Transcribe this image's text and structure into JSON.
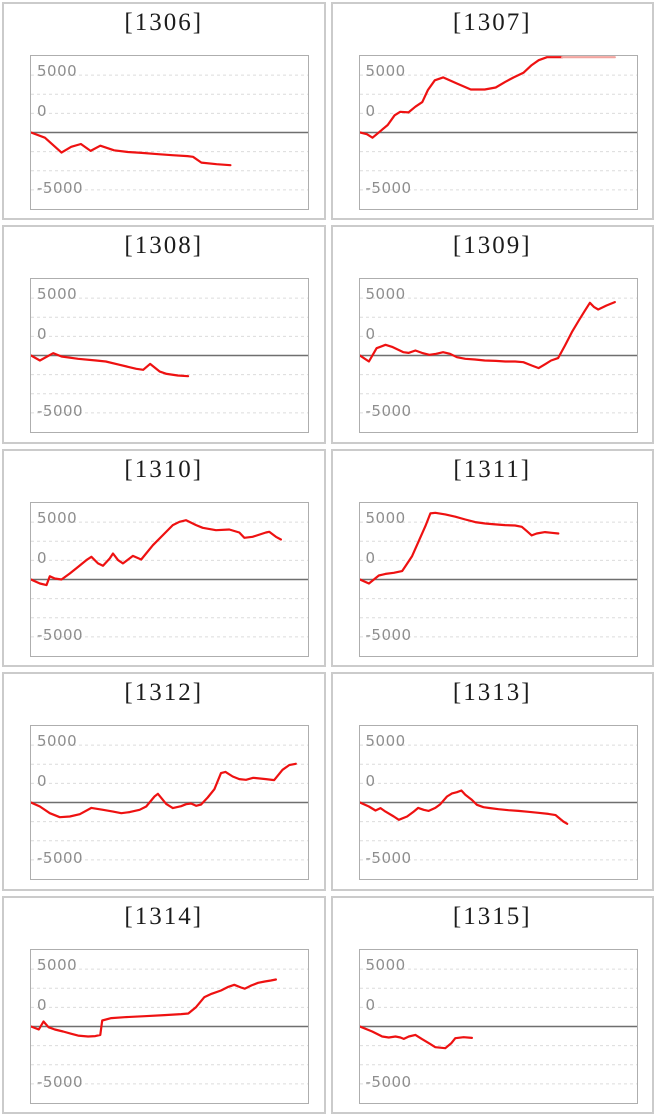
{
  "axis": {
    "y_tick_labels": [
      "5000",
      "0",
      "-5000"
    ],
    "y_max": 6667,
    "y_min": -6667,
    "gridline_divisions": 8,
    "gridline_step_value": 1667,
    "zero_line": "solid",
    "other_gridlines": "dashed"
  },
  "colors": {
    "line": "#ee1111",
    "line_clipped": "#f2a49f",
    "gridline": "#dcdcdc",
    "zero_line": "#6f6f6f",
    "plot_border": "#aeaeae",
    "cell_border": "#cbcbcb",
    "axis_label": "#8e8e8e",
    "title": "#1c1c1c",
    "background": "#ffffff"
  },
  "chart_data": [
    {
      "title": "[1306]",
      "type": "line",
      "x_unit": "normalized-0-1",
      "ylim": [
        -6667,
        6667
      ],
      "points": [
        [
          0,
          0
        ],
        [
          0.05,
          -450
        ],
        [
          0.11,
          -1750
        ],
        [
          0.145,
          -1250
        ],
        [
          0.18,
          -1000
        ],
        [
          0.215,
          -1600
        ],
        [
          0.25,
          -1150
        ],
        [
          0.3,
          -1550
        ],
        [
          0.35,
          -1700
        ],
        [
          0.4,
          -1780
        ],
        [
          0.46,
          -1890
        ],
        [
          0.51,
          -1980
        ],
        [
          0.565,
          -2060
        ],
        [
          0.585,
          -2120
        ],
        [
          0.615,
          -2620
        ],
        [
          0.67,
          -2760
        ],
        [
          0.72,
          -2850
        ]
      ]
    },
    {
      "title": "[1307]",
      "type": "line",
      "x_unit": "normalized-0-1",
      "ylim": [
        -6667,
        6667
      ],
      "points": [
        [
          0,
          0
        ],
        [
          0.025,
          -150
        ],
        [
          0.045,
          -450
        ],
        [
          0.1,
          650
        ],
        [
          0.125,
          1500
        ],
        [
          0.145,
          1800
        ],
        [
          0.175,
          1750
        ],
        [
          0.2,
          2250
        ],
        [
          0.225,
          2650
        ],
        [
          0.245,
          3700
        ],
        [
          0.27,
          4550
        ],
        [
          0.3,
          4800
        ],
        [
          0.35,
          4270
        ],
        [
          0.4,
          3750
        ],
        [
          0.45,
          3750
        ],
        [
          0.49,
          3920
        ],
        [
          0.525,
          4420
        ],
        [
          0.555,
          4800
        ],
        [
          0.59,
          5200
        ],
        [
          0.62,
          5870
        ],
        [
          0.645,
          6300
        ],
        [
          0.675,
          6600
        ],
        [
          0.7,
          6667
        ],
        [
          0.73,
          6667
        ]
      ],
      "overflow_points": [
        [
          0.73,
          6667
        ],
        [
          0.92,
          6667
        ]
      ]
    },
    {
      "title": "[1308]",
      "type": "line",
      "x_unit": "normalized-0-1",
      "ylim": [
        -6667,
        6667
      ],
      "points": [
        [
          0,
          0
        ],
        [
          0.032,
          -440
        ],
        [
          0.08,
          200
        ],
        [
          0.11,
          -90
        ],
        [
          0.17,
          -290
        ],
        [
          0.235,
          -440
        ],
        [
          0.27,
          -520
        ],
        [
          0.32,
          -810
        ],
        [
          0.38,
          -1160
        ],
        [
          0.405,
          -1250
        ],
        [
          0.43,
          -730
        ],
        [
          0.465,
          -1400
        ],
        [
          0.49,
          -1600
        ],
        [
          0.53,
          -1740
        ],
        [
          0.567,
          -1800
        ]
      ]
    },
    {
      "title": "[1309]",
      "type": "line",
      "x_unit": "normalized-0-1",
      "ylim": [
        -6667,
        6667
      ],
      "points": [
        [
          0,
          0
        ],
        [
          0.032,
          -520
        ],
        [
          0.06,
          640
        ],
        [
          0.092,
          930
        ],
        [
          0.118,
          730
        ],
        [
          0.157,
          290
        ],
        [
          0.175,
          230
        ],
        [
          0.2,
          440
        ],
        [
          0.224,
          230
        ],
        [
          0.25,
          60
        ],
        [
          0.275,
          150
        ],
        [
          0.3,
          290
        ],
        [
          0.325,
          150
        ],
        [
          0.35,
          -150
        ],
        [
          0.38,
          -290
        ],
        [
          0.415,
          -350
        ],
        [
          0.45,
          -440
        ],
        [
          0.49,
          -470
        ],
        [
          0.525,
          -520
        ],
        [
          0.56,
          -520
        ],
        [
          0.59,
          -580
        ],
        [
          0.62,
          -870
        ],
        [
          0.645,
          -1100
        ],
        [
          0.67,
          -730
        ],
        [
          0.69,
          -440
        ],
        [
          0.715,
          -230
        ],
        [
          0.74,
          870
        ],
        [
          0.765,
          2040
        ],
        [
          0.79,
          3050
        ],
        [
          0.81,
          3840
        ],
        [
          0.83,
          4590
        ],
        [
          0.845,
          4220
        ],
        [
          0.86,
          4010
        ],
        [
          0.89,
          4360
        ],
        [
          0.92,
          4650
        ]
      ]
    },
    {
      "title": "[1310]",
      "type": "line",
      "x_unit": "normalized-0-1",
      "ylim": [
        -6667,
        6667
      ],
      "points": [
        [
          0,
          0
        ],
        [
          0.032,
          -350
        ],
        [
          0.056,
          -490
        ],
        [
          0.068,
          290
        ],
        [
          0.086,
          90
        ],
        [
          0.11,
          0
        ],
        [
          0.14,
          520
        ],
        [
          0.17,
          1100
        ],
        [
          0.2,
          1690
        ],
        [
          0.218,
          1980
        ],
        [
          0.242,
          1400
        ],
        [
          0.26,
          1190
        ],
        [
          0.284,
          1830
        ],
        [
          0.296,
          2270
        ],
        [
          0.314,
          1690
        ],
        [
          0.332,
          1400
        ],
        [
          0.368,
          2060
        ],
        [
          0.398,
          1740
        ],
        [
          0.44,
          2990
        ],
        [
          0.476,
          3870
        ],
        [
          0.512,
          4740
        ],
        [
          0.536,
          5030
        ],
        [
          0.56,
          5170
        ],
        [
          0.596,
          4740
        ],
        [
          0.62,
          4510
        ],
        [
          0.668,
          4300
        ],
        [
          0.716,
          4360
        ],
        [
          0.752,
          4100
        ],
        [
          0.77,
          3630
        ],
        [
          0.8,
          3720
        ],
        [
          0.848,
          4100
        ],
        [
          0.86,
          4160
        ],
        [
          0.884,
          3720
        ],
        [
          0.902,
          3490
        ]
      ]
    },
    {
      "title": "[1311]",
      "type": "line",
      "x_unit": "normalized-0-1",
      "ylim": [
        -6667,
        6667
      ],
      "points": [
        [
          0,
          0
        ],
        [
          0.032,
          -350
        ],
        [
          0.05,
          0
        ],
        [
          0.068,
          350
        ],
        [
          0.092,
          490
        ],
        [
          0.122,
          580
        ],
        [
          0.152,
          730
        ],
        [
          0.164,
          1160
        ],
        [
          0.188,
          2040
        ],
        [
          0.212,
          3340
        ],
        [
          0.236,
          4650
        ],
        [
          0.254,
          5760
        ],
        [
          0.272,
          5810
        ],
        [
          0.308,
          5670
        ],
        [
          0.344,
          5470
        ],
        [
          0.38,
          5230
        ],
        [
          0.416,
          5000
        ],
        [
          0.452,
          4880
        ],
        [
          0.488,
          4800
        ],
        [
          0.524,
          4740
        ],
        [
          0.56,
          4710
        ],
        [
          0.584,
          4590
        ],
        [
          0.602,
          4220
        ],
        [
          0.62,
          3840
        ],
        [
          0.638,
          4010
        ],
        [
          0.668,
          4130
        ],
        [
          0.692,
          4070
        ],
        [
          0.716,
          4010
        ]
      ]
    },
    {
      "title": "[1312]",
      "type": "line",
      "x_unit": "normalized-0-1",
      "ylim": [
        -6667,
        6667
      ],
      "points": [
        [
          0,
          0
        ],
        [
          0.032,
          -350
        ],
        [
          0.068,
          -930
        ],
        [
          0.104,
          -1280
        ],
        [
          0.14,
          -1220
        ],
        [
          0.176,
          -1020
        ],
        [
          0.218,
          -470
        ],
        [
          0.26,
          -640
        ],
        [
          0.296,
          -790
        ],
        [
          0.326,
          -930
        ],
        [
          0.356,
          -840
        ],
        [
          0.392,
          -640
        ],
        [
          0.416,
          -350
        ],
        [
          0.446,
          520
        ],
        [
          0.458,
          760
        ],
        [
          0.488,
          -120
        ],
        [
          0.512,
          -490
        ],
        [
          0.542,
          -320
        ],
        [
          0.56,
          -150
        ],
        [
          0.578,
          -90
        ],
        [
          0.596,
          -290
        ],
        [
          0.614,
          -170
        ],
        [
          0.638,
          440
        ],
        [
          0.662,
          1160
        ],
        [
          0.686,
          2560
        ],
        [
          0.702,
          2670
        ],
        [
          0.728,
          2270
        ],
        [
          0.752,
          2040
        ],
        [
          0.776,
          1980
        ],
        [
          0.802,
          2150
        ],
        [
          0.848,
          2040
        ],
        [
          0.878,
          1950
        ],
        [
          0.908,
          2850
        ],
        [
          0.932,
          3260
        ],
        [
          0.956,
          3370
        ]
      ]
    },
    {
      "title": "[1313]",
      "type": "line",
      "x_unit": "normalized-0-1",
      "ylim": [
        -6667,
        6667
      ],
      "points": [
        [
          0,
          0
        ],
        [
          0.032,
          -350
        ],
        [
          0.056,
          -700
        ],
        [
          0.074,
          -490
        ],
        [
          0.092,
          -790
        ],
        [
          0.122,
          -1220
        ],
        [
          0.14,
          -1510
        ],
        [
          0.17,
          -1220
        ],
        [
          0.194,
          -790
        ],
        [
          0.21,
          -470
        ],
        [
          0.23,
          -640
        ],
        [
          0.248,
          -730
        ],
        [
          0.272,
          -470
        ],
        [
          0.29,
          -150
        ],
        [
          0.314,
          520
        ],
        [
          0.332,
          790
        ],
        [
          0.35,
          900
        ],
        [
          0.366,
          1050
        ],
        [
          0.38,
          670
        ],
        [
          0.404,
          230
        ],
        [
          0.422,
          -200
        ],
        [
          0.446,
          -410
        ],
        [
          0.47,
          -490
        ],
        [
          0.5,
          -580
        ],
        [
          0.536,
          -670
        ],
        [
          0.572,
          -730
        ],
        [
          0.608,
          -810
        ],
        [
          0.644,
          -900
        ],
        [
          0.68,
          -990
        ],
        [
          0.706,
          -1100
        ],
        [
          0.734,
          -1660
        ],
        [
          0.748,
          -1860
        ]
      ]
    },
    {
      "title": "[1314]",
      "type": "line",
      "x_unit": "normalized-0-1",
      "ylim": [
        -6667,
        6667
      ],
      "points": [
        [
          0,
          0
        ],
        [
          0.028,
          -260
        ],
        [
          0.045,
          440
        ],
        [
          0.063,
          -60
        ],
        [
          0.086,
          -260
        ],
        [
          0.116,
          -440
        ],
        [
          0.146,
          -640
        ],
        [
          0.17,
          -790
        ],
        [
          0.206,
          -870
        ],
        [
          0.232,
          -840
        ],
        [
          0.25,
          -730
        ],
        [
          0.257,
          520
        ],
        [
          0.29,
          730
        ],
        [
          0.338,
          810
        ],
        [
          0.41,
          900
        ],
        [
          0.482,
          990
        ],
        [
          0.542,
          1080
        ],
        [
          0.568,
          1130
        ],
        [
          0.596,
          1690
        ],
        [
          0.626,
          2560
        ],
        [
          0.652,
          2850
        ],
        [
          0.686,
          3140
        ],
        [
          0.71,
          3430
        ],
        [
          0.734,
          3630
        ],
        [
          0.758,
          3400
        ],
        [
          0.772,
          3290
        ],
        [
          0.796,
          3580
        ],
        [
          0.82,
          3810
        ],
        [
          0.844,
          3920
        ],
        [
          0.866,
          4010
        ],
        [
          0.884,
          4100
        ]
      ]
    },
    {
      "title": "[1315]",
      "type": "line",
      "x_unit": "normalized-0-1",
      "ylim": [
        -6667,
        6667
      ],
      "points": [
        [
          0,
          0
        ],
        [
          0.044,
          -440
        ],
        [
          0.08,
          -870
        ],
        [
          0.104,
          -960
        ],
        [
          0.128,
          -870
        ],
        [
          0.146,
          -960
        ],
        [
          0.158,
          -1080
        ],
        [
          0.176,
          -870
        ],
        [
          0.2,
          -730
        ],
        [
          0.224,
          -1100
        ],
        [
          0.248,
          -1450
        ],
        [
          0.272,
          -1800
        ],
        [
          0.308,
          -1890
        ],
        [
          0.33,
          -1450
        ],
        [
          0.344,
          -1020
        ],
        [
          0.374,
          -930
        ],
        [
          0.404,
          -990
        ]
      ]
    }
  ]
}
